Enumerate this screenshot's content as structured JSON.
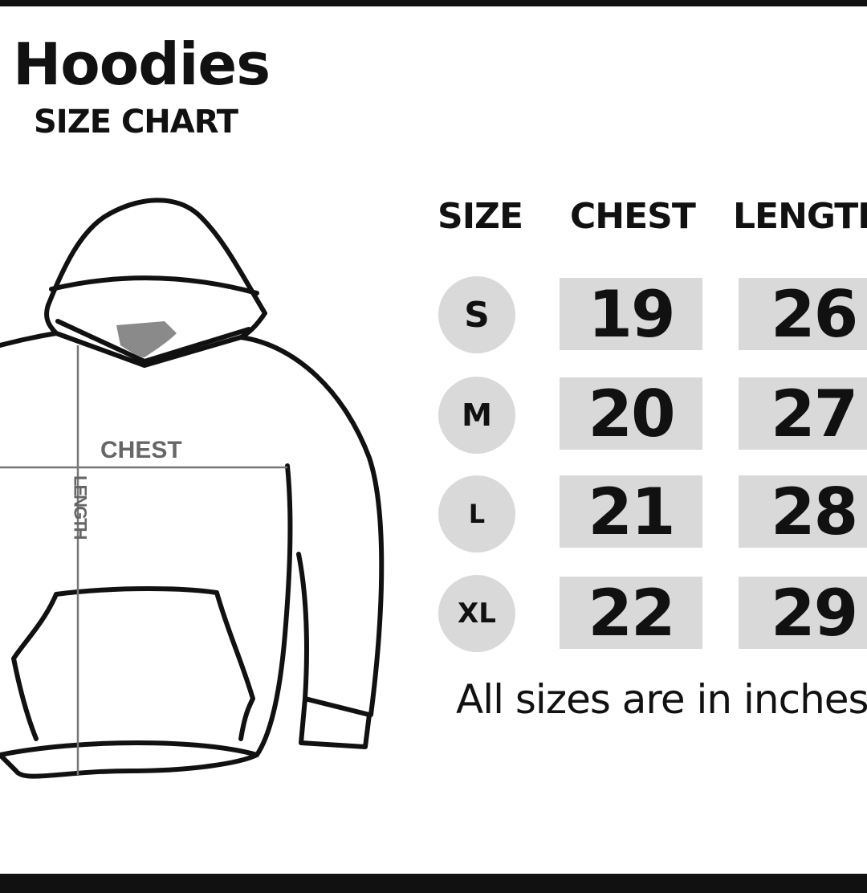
{
  "title": "Hoodies",
  "subtitle": "SIZE CHART",
  "diagram": {
    "chest_label": "CHEST",
    "length_label": "LENGTH"
  },
  "table": {
    "headers": [
      "SIZE",
      "CHEST",
      "LENGTH"
    ],
    "rows": [
      {
        "size": "S",
        "chest": "19",
        "length": "26"
      },
      {
        "size": "M",
        "chest": "20",
        "length": "27"
      },
      {
        "size": "L",
        "chest": "21",
        "length": "28"
      },
      {
        "size": "XL",
        "chest": "22",
        "length": "29"
      }
    ]
  },
  "note": "All sizes are in inches",
  "colors": {
    "cell_bg": "#d9d9d9",
    "text": "#111111",
    "diagram_lines": "#777777"
  }
}
